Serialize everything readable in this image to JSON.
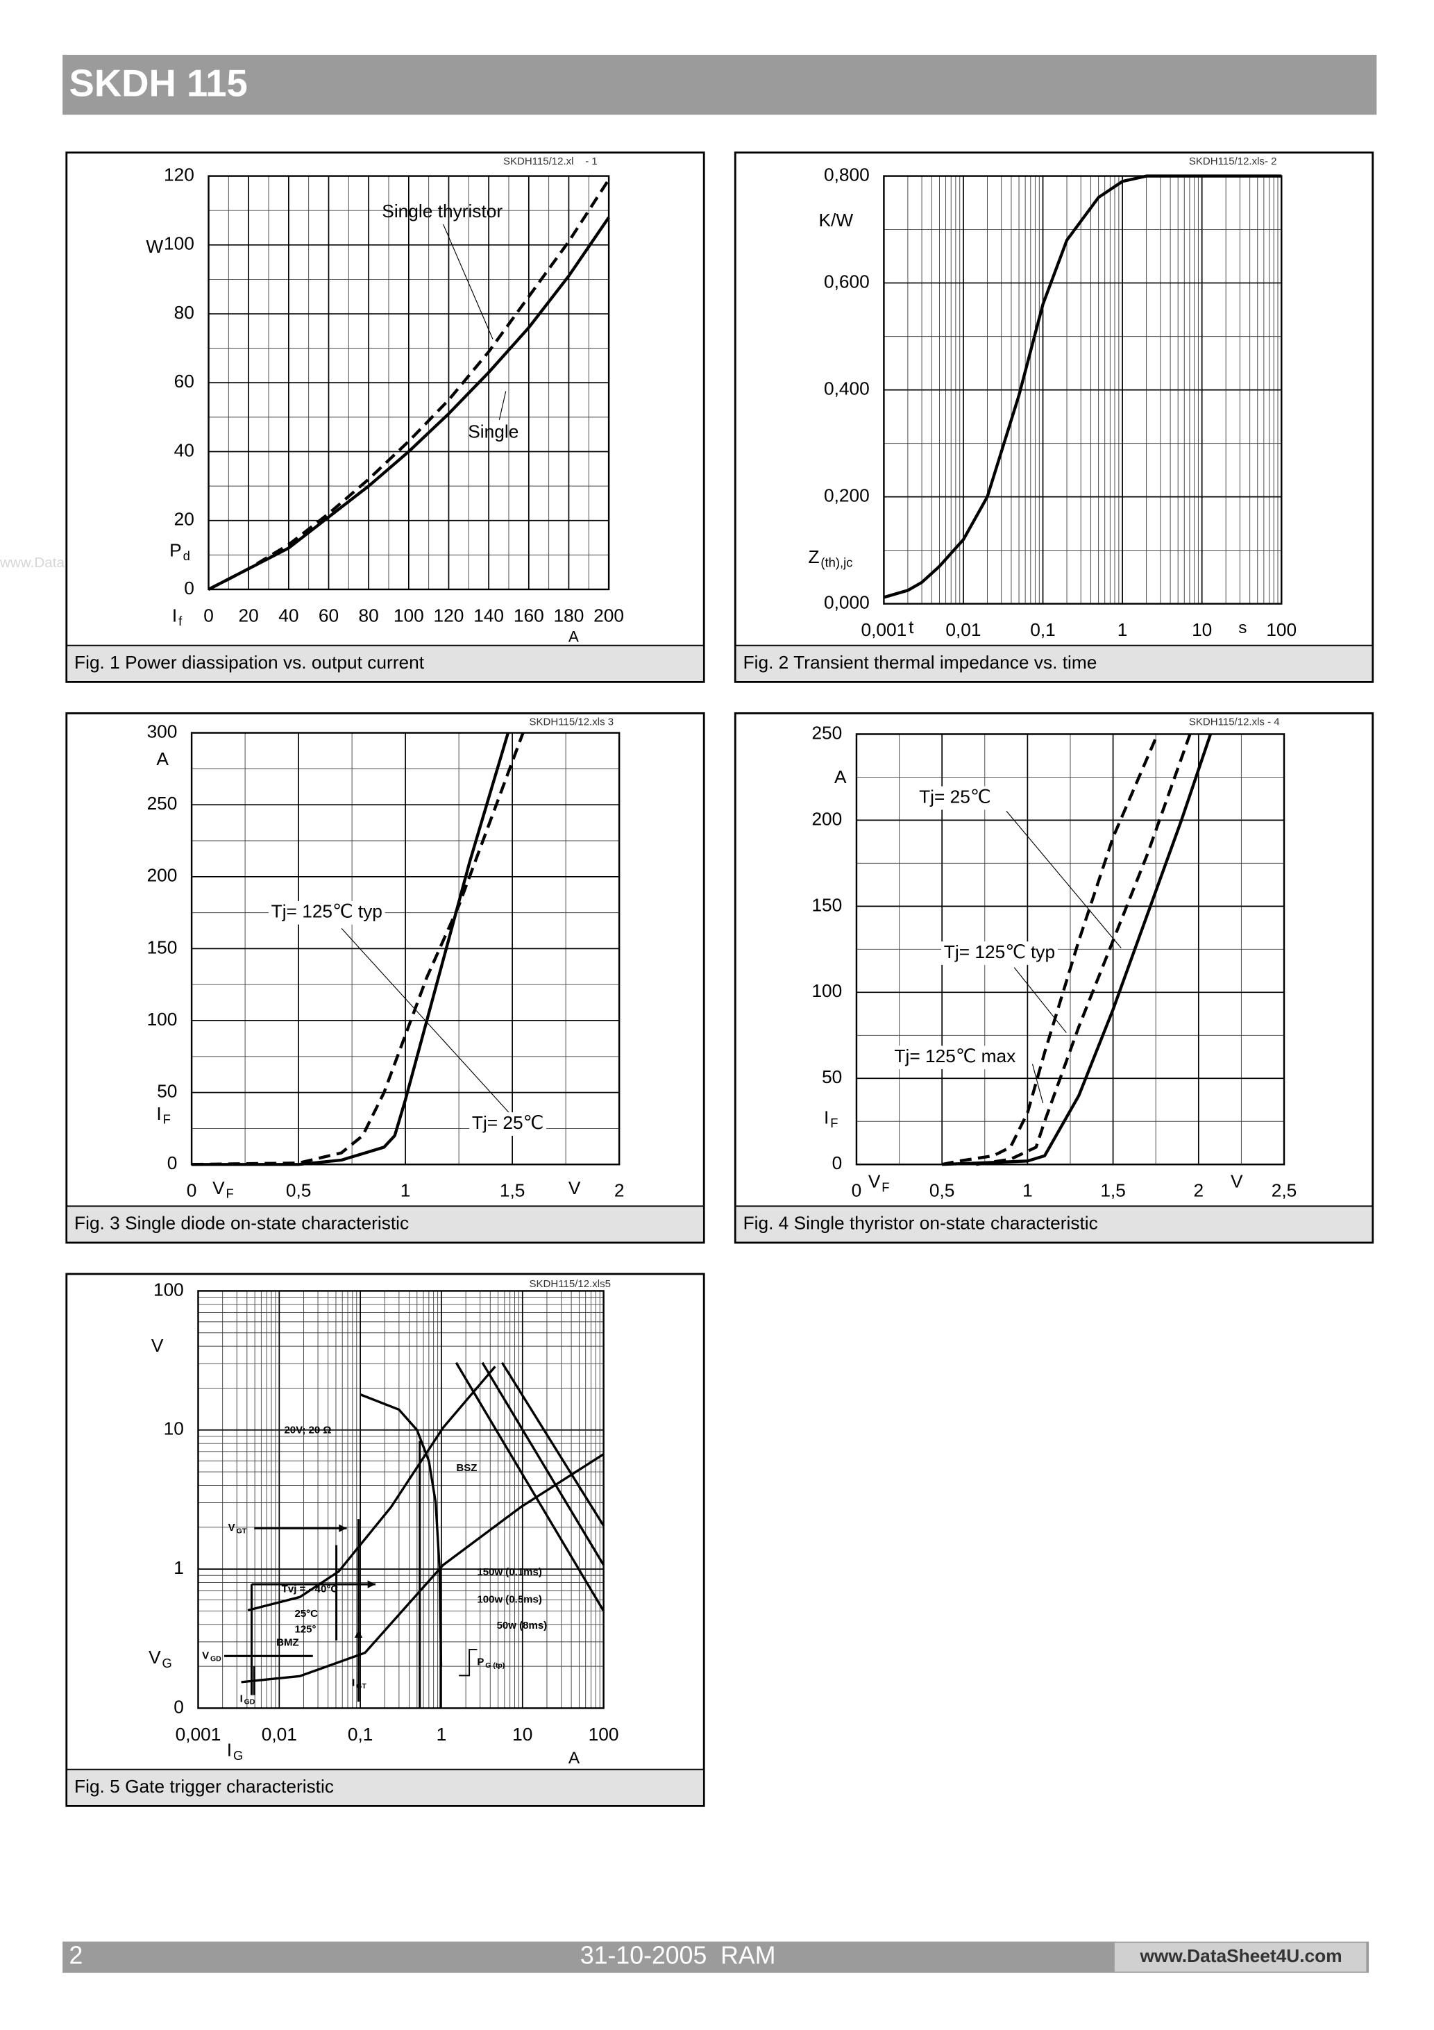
{
  "header": {
    "title": "SKDH 115"
  },
  "watermark": "www.DataSheet4U.com",
  "chart_data": [
    {
      "type": "line",
      "caption": "Fig. 1 Power diassipation vs. output current",
      "ref": "SKDH115/12.xl    - 1",
      "xlim": [
        0,
        200
      ],
      "xticks": [
        0,
        20,
        40,
        60,
        80,
        100,
        120,
        140,
        160,
        180,
        200
      ],
      "ylim": [
        0,
        120
      ],
      "yticks": [
        0,
        20,
        40,
        60,
        80,
        100,
        120
      ],
      "grid": true,
      "labels": [
        {
          "text": "W"
        },
        {
          "text": "P",
          "sub": "d"
        },
        {
          "text": "I",
          "sub": "f"
        },
        {
          "text": "A"
        }
      ],
      "series": [
        {
          "name": "Single",
          "color": "#000000",
          "style": "solid",
          "x": [
            0,
            20,
            40,
            60,
            80,
            100,
            120,
            140,
            160,
            180,
            200
          ],
          "values": [
            0,
            6,
            12,
            21,
            30,
            40,
            51,
            63,
            76,
            91,
            108
          ]
        },
        {
          "name": "Single thyristor",
          "color": "#000000",
          "style": "dashed",
          "x": [
            0,
            20,
            40,
            60,
            80,
            100,
            120,
            140,
            160,
            180,
            200
          ],
          "values": [
            0,
            6,
            13,
            22,
            32,
            43,
            55,
            69,
            85,
            101,
            119
          ]
        }
      ]
    },
    {
      "type": "line",
      "caption": "Fig. 2 Transient thermal impedance vs. time",
      "ref": "SKDH115/12.xls- 2",
      "xlim": [
        0.001,
        100
      ],
      "xlog": true,
      "xticks": [
        {
          "value": 0.001,
          "label": "0,001"
        },
        {
          "value": 0.01,
          "label": "0,01"
        },
        {
          "value": 0.1,
          "label": "0,1"
        },
        1,
        10,
        100
      ],
      "ylim": [
        0,
        0.8
      ],
      "yticks": [
        {
          "value": 0,
          "label": "0,000"
        },
        {
          "value": 0.2,
          "label": "0,200"
        },
        {
          "value": 0.4,
          "label": "0,400"
        },
        {
          "value": 0.6,
          "label": "0,600"
        },
        {
          "value": 0.8,
          "label": "0,800"
        }
      ],
      "grid": true,
      "labels": [
        {
          "text": "K/W"
        },
        {
          "text": "Z",
          "sub": "(th),jc"
        },
        {
          "text": "t"
        },
        {
          "text": "s"
        }
      ],
      "series": [
        {
          "color": "#000000",
          "style": "solid",
          "x": [
            0.001,
            0.002,
            0.003,
            0.005,
            0.01,
            0.02,
            0.05,
            0.1,
            0.2,
            0.5,
            1,
            2,
            100
          ],
          "values": [
            0.012,
            0.025,
            0.04,
            0.07,
            0.12,
            0.2,
            0.39,
            0.56,
            0.68,
            0.76,
            0.79,
            0.8,
            0.8
          ]
        }
      ]
    },
    {
      "type": "line",
      "caption": "Fig. 3 Single diode on-state characteristic",
      "ref": "SKDH115/12.xls 3",
      "xlim": [
        0,
        2
      ],
      "xticks": [
        0,
        {
          "value": 0.5,
          "label": "0,5"
        },
        1,
        {
          "value": 1.5,
          "label": "1,5"
        },
        2
      ],
      "ylim": [
        0,
        300
      ],
      "yticks": [
        0,
        50,
        100,
        150,
        200,
        250,
        300
      ],
      "grid": true,
      "labels": [
        {
          "text": "A"
        },
        {
          "text": "I",
          "sub": "F"
        },
        {
          "text": "V",
          "sub": "F"
        },
        {
          "text": "V"
        }
      ],
      "series": [
        {
          "name": "Tj= 25℃",
          "color": "#000000",
          "style": "solid",
          "x": [
            0,
            0.5,
            0.7,
            0.9,
            0.95,
            1.0,
            1.1,
            1.2,
            1.3,
            1.4,
            1.48
          ],
          "values": [
            0,
            0,
            3,
            12,
            20,
            45,
            100,
            155,
            210,
            260,
            300
          ]
        },
        {
          "name": "Tj= 125℃ typ",
          "color": "#000000",
          "style": "dashed",
          "x": [
            0,
            0.5,
            0.7,
            0.8,
            0.9,
            1.0,
            1.1,
            1.25,
            1.4,
            1.55
          ],
          "values": [
            0,
            1,
            8,
            20,
            50,
            90,
            130,
            180,
            240,
            300
          ]
        }
      ]
    },
    {
      "type": "line",
      "caption": "Fig. 4 Single thyristor on-state characteristic",
      "ref": "SKDH115/12.xls - 4",
      "xlim": [
        0,
        2.5
      ],
      "xticks": [
        0,
        {
          "value": 0.5,
          "label": "0,5"
        },
        1,
        {
          "value": 1.5,
          "label": "1,5"
        },
        2,
        {
          "value": 2.5,
          "label": "2,5"
        }
      ],
      "ylim": [
        0,
        250
      ],
      "yticks": [
        0,
        50,
        100,
        150,
        200,
        250
      ],
      "grid": true,
      "labels": [
        {
          "text": "A"
        },
        {
          "text": "I",
          "sub": "F"
        },
        {
          "text": "V",
          "sub": "F"
        },
        {
          "text": "V"
        }
      ],
      "series": [
        {
          "name": "Tj= 125℃ typ",
          "color": "#000000",
          "style": "dashed",
          "x": [
            0.5,
            0.6,
            0.8,
            0.9,
            1.0,
            1.1,
            1.3,
            1.5,
            1.76
          ],
          "values": [
            0,
            2,
            5,
            10,
            30,
            65,
            130,
            190,
            250
          ]
        },
        {
          "name": "Tj= 125℃ max",
          "color": "#000000",
          "style": "dashed",
          "x": [
            0.7,
            0.9,
            1.05,
            1.1,
            1.3,
            1.5,
            1.7,
            1.95
          ],
          "values": [
            0,
            3,
            10,
            25,
            80,
            130,
            180,
            250
          ]
        },
        {
          "name": "Tj= 25℃",
          "color": "#000000",
          "style": "solid",
          "x": [
            0.5,
            1.0,
            1.1,
            1.3,
            1.5,
            1.7,
            1.9,
            2.07
          ],
          "values": [
            0,
            2,
            5,
            40,
            90,
            145,
            200,
            250
          ]
        }
      ]
    },
    {
      "type": "line",
      "caption": "Fig. 5 Gate trigger characteristic",
      "ref": "SKDH115/12.xls5",
      "xlim": [
        0.001,
        100
      ],
      "xlog": true,
      "xticks": [
        {
          "value": 0.001,
          "label": "0,001"
        },
        {
          "value": 0.01,
          "label": "0,01"
        },
        {
          "value": 0.1,
          "label": "0,1"
        },
        1,
        10,
        100
      ],
      "ylim": [
        0.1,
        100
      ],
      "ylog": true,
      "yticks": [
        {
          "value": 0.1,
          "label": "0"
        },
        1,
        10,
        100
      ],
      "grid": true,
      "labels": [
        {
          "text": "V"
        },
        {
          "text": "V",
          "sub": "G"
        },
        {
          "text": "I",
          "sub": "G"
        },
        {
          "text": "A"
        },
        {
          "text": "BSZ"
        },
        {
          "text": "V",
          "sub": "GT"
        },
        {
          "text": "Tvj =   - 40°C"
        },
        {
          "text": "25°C"
        },
        {
          "text": "125°"
        },
        {
          "text": "BMZ"
        },
        {
          "text": "V",
          "sub": "GD"
        },
        {
          "text": "I",
          "sub": "GD"
        },
        {
          "text": "I",
          "sub": "GT"
        },
        {
          "text": "P",
          "sub": "G (tp)"
        }
      ],
      "series": [
        {
          "color": "#000000",
          "style": "solid",
          "x": [
            0.0041,
            0.018,
            0.054,
            0.24,
            1.05,
            4.6
          ],
          "values": [
            0.505,
            0.63,
            0.96,
            2.8,
            10.4,
            28.6
          ]
        },
        {
          "color": "#000000",
          "style": "solid",
          "x": [
            0.0034,
            0.018,
            0.114,
            1.05,
            9.6,
            100
          ],
          "values": [
            0.154,
            0.17,
            0.25,
            1.07,
            2.8,
            6.7
          ]
        },
        {
          "name": "20V; 20 Ω",
          "color": "#000000",
          "style": "solid",
          "x": [
            0.1,
            0.3,
            0.5,
            0.7,
            0.85,
            0.95,
            0.99
          ],
          "values": [
            18,
            14,
            10,
            6,
            3,
            1,
            0.2
          ]
        },
        {
          "name": "150w (0.1ms)",
          "color": "#000000",
          "style": "solid",
          "x": [
            1.52,
            100
          ],
          "values": [
            30.5,
            0.5
          ]
        },
        {
          "name": "100w (0.5ms)",
          "color": "#000000",
          "style": "solid",
          "x": [
            3.2,
            100
          ],
          "values": [
            30.5,
            1.07
          ]
        },
        {
          "name": "50w (8ms)",
          "color": "#000000",
          "style": "solid",
          "x": [
            5.6,
            100
          ],
          "values": [
            30.5,
            2.05
          ]
        }
      ]
    }
  ],
  "footer": {
    "page": "2",
    "date": "31-10-2005  RAM",
    "url": "www.DataSheet4U.com"
  }
}
